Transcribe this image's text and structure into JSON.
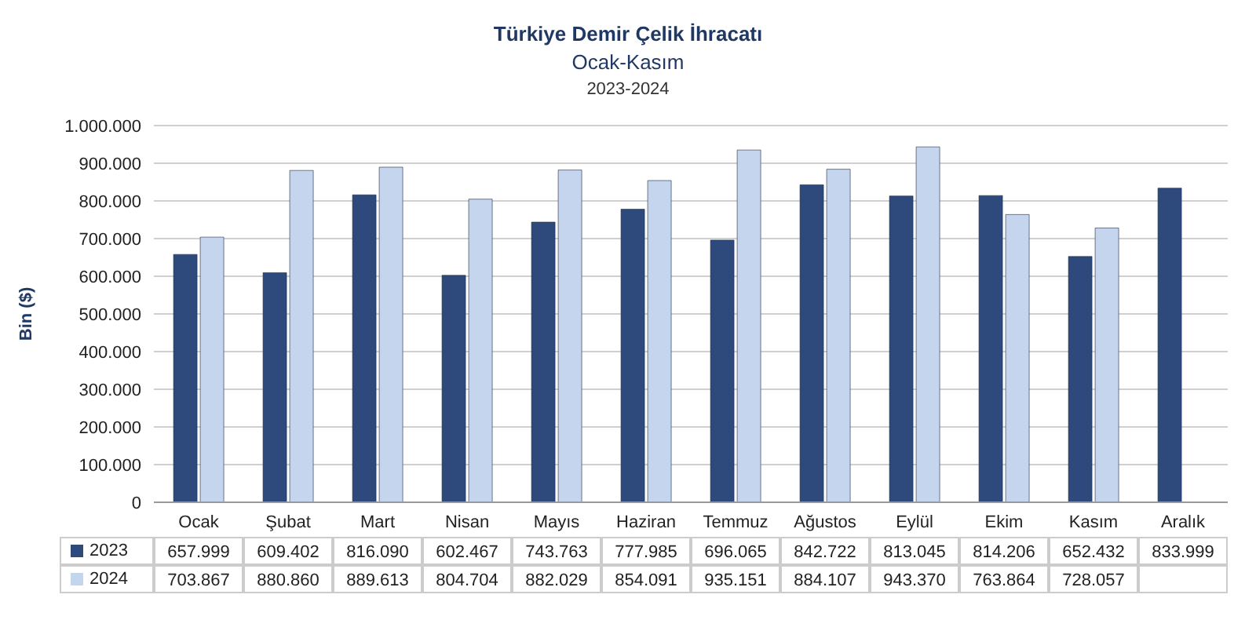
{
  "chart_data": {
    "type": "bar",
    "title": "Türkiye Demir Çelik İhracatı",
    "subtitle": "Ocak-Kasım",
    "annotations": [
      "2023-2024"
    ],
    "ylabel": "Bin ($)",
    "categories": [
      "Ocak",
      "Şubat",
      "Mart",
      "Nisan",
      "Mayıs",
      "Haziran",
      "Temmuz",
      "Ağustos",
      "Eylül",
      "Ekim",
      "Kasım",
      "Aralık"
    ],
    "series": [
      {
        "name": "2023",
        "color": "#2e4a7d",
        "values": [
          657999,
          609402,
          816090,
          602467,
          743763,
          777985,
          696065,
          842722,
          813045,
          814206,
          652432,
          833999
        ],
        "value_labels": [
          "657.999",
          "609.402",
          "816.090",
          "602.467",
          "743.763",
          "777.985",
          "696.065",
          "842.722",
          "813.045",
          "814.206",
          "652.432",
          "833.999"
        ]
      },
      {
        "name": "2024",
        "color": "#c5d5ee",
        "values": [
          703867,
          880860,
          889613,
          804704,
          882029,
          854091,
          935151,
          884107,
          943370,
          763864,
          728057,
          null
        ],
        "value_labels": [
          "703.867",
          "880.860",
          "889.613",
          "804.704",
          "882.029",
          "854.091",
          "935.151",
          "884.107",
          "943.370",
          "763.864",
          "728.057",
          null
        ]
      }
    ],
    "ylim": [
      0,
      1000000
    ],
    "yticks": [
      0,
      {
        "value": 100000,
        "label": "100.000"
      },
      {
        "value": 200000,
        "label": "200.000"
      },
      {
        "value": 300000,
        "label": "300.000"
      },
      {
        "value": 400000,
        "label": "400.000"
      },
      {
        "value": 500000,
        "label": "500.000"
      },
      {
        "value": 600000,
        "label": "600.000"
      },
      {
        "value": 700000,
        "label": "700.000"
      },
      {
        "value": 800000,
        "label": "800.000"
      },
      {
        "value": 900000,
        "label": "900.000"
      },
      {
        "value": 1000000,
        "label": "1.000.000"
      }
    ],
    "grid": "y",
    "legend": "bottom left"
  }
}
